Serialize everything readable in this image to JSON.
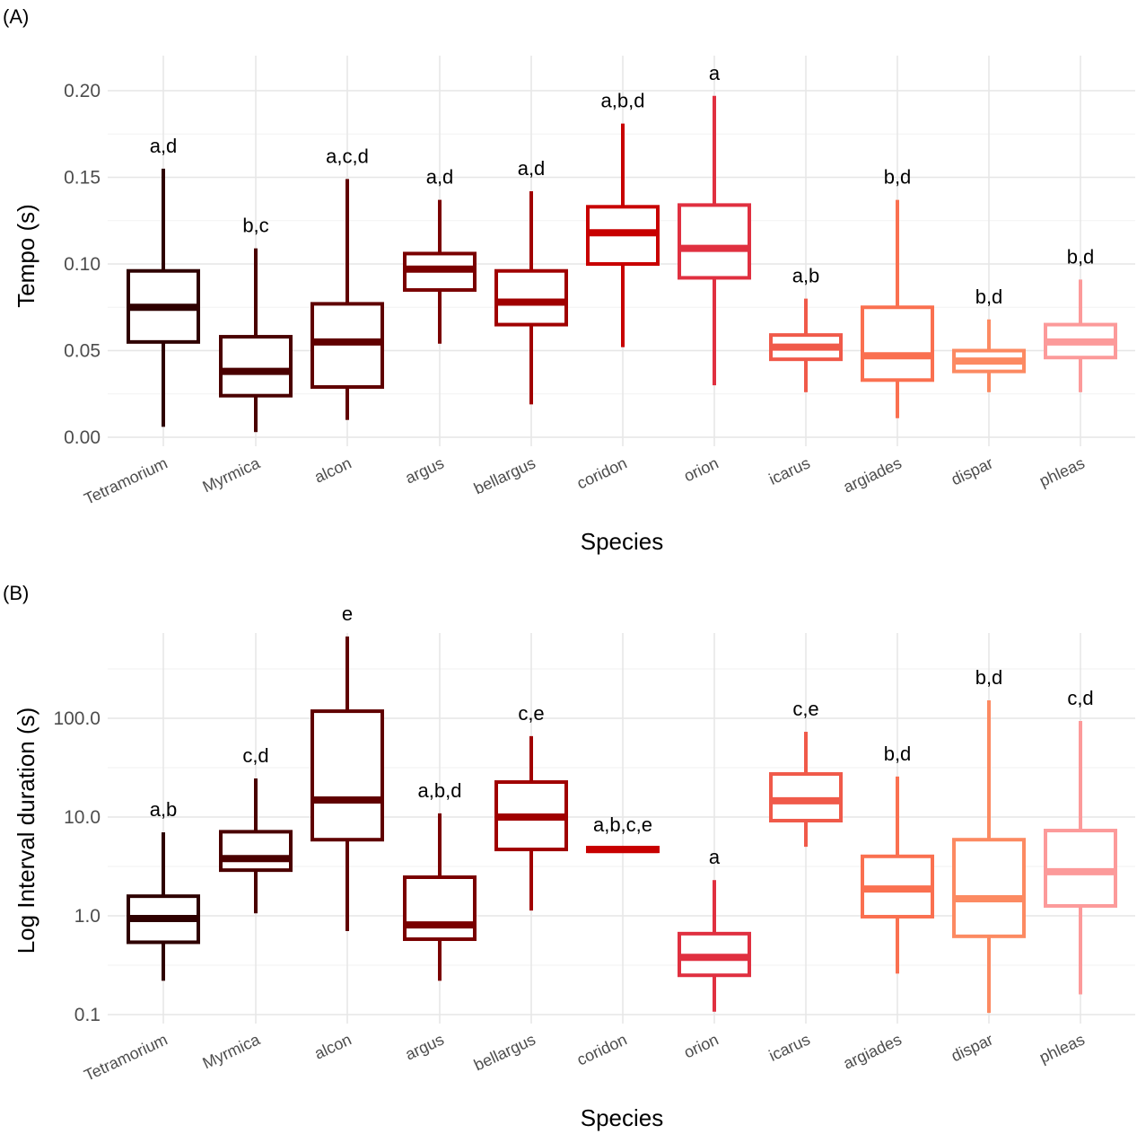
{
  "chart_data": [
    {
      "type": "boxplot",
      "panel_label": "(A)",
      "xlabel": "Species",
      "ylabel": "Tempo (s)",
      "ylim": [
        0,
        0.2
      ],
      "yticks": [
        0.0,
        0.05,
        0.1,
        0.15,
        0.2
      ],
      "ytick_labels": [
        "0.00",
        "0.05",
        "0.10",
        "0.15",
        "0.20"
      ],
      "scale": "linear",
      "grid": true,
      "categories": [
        "Tetramorium",
        "Myrmica",
        "alcon",
        "argus",
        "bellargus",
        "coridon",
        "orion",
        "icarus",
        "argiades",
        "dispar",
        "phleas"
      ],
      "boxes": [
        {
          "min": 0.006,
          "q1": 0.055,
          "median": 0.075,
          "q3": 0.096,
          "max": 0.155,
          "letters": "a,d"
        },
        {
          "min": 0.003,
          "q1": 0.024,
          "median": 0.038,
          "q3": 0.058,
          "max": 0.109,
          "letters": "b,c"
        },
        {
          "min": 0.01,
          "q1": 0.029,
          "median": 0.055,
          "q3": 0.077,
          "max": 0.149,
          "letters": "a,c,d"
        },
        {
          "min": 0.054,
          "q1": 0.085,
          "median": 0.097,
          "q3": 0.106,
          "max": 0.137,
          "letters": "a,d"
        },
        {
          "min": 0.019,
          "q1": 0.065,
          "median": 0.078,
          "q3": 0.096,
          "max": 0.142,
          "letters": "a,d"
        },
        {
          "min": 0.052,
          "q1": 0.1,
          "median": 0.118,
          "q3": 0.133,
          "max": 0.181,
          "letters": "a,b,d"
        },
        {
          "min": 0.03,
          "q1": 0.092,
          "median": 0.109,
          "q3": 0.134,
          "max": 0.197,
          "letters": "a"
        },
        {
          "min": 0.026,
          "q1": 0.045,
          "median": 0.052,
          "q3": 0.059,
          "max": 0.08,
          "letters": "a,b"
        },
        {
          "min": 0.011,
          "q1": 0.033,
          "median": 0.047,
          "q3": 0.075,
          "max": 0.137,
          "letters": "b,d"
        },
        {
          "min": 0.026,
          "q1": 0.038,
          "median": 0.044,
          "q3": 0.05,
          "max": 0.068,
          "letters": "b,d"
        },
        {
          "min": 0.026,
          "q1": 0.046,
          "median": 0.055,
          "q3": 0.065,
          "max": 0.091,
          "letters": "b,d"
        }
      ]
    },
    {
      "type": "boxplot",
      "panel_label": "(B)",
      "xlabel": "Species",
      "ylabel": "Log Interval duration (s)",
      "ylim": [
        0.1,
        1000
      ],
      "yticks": [
        0.1,
        1,
        10,
        100
      ],
      "ytick_labels": [
        "0.1",
        "1.0",
        "10.0",
        "100.0"
      ],
      "scale": "log10",
      "grid": true,
      "categories": [
        "Tetramorium",
        "Myrmica",
        "alcon",
        "argus",
        "bellargus",
        "coridon",
        "orion",
        "icarus",
        "argiades",
        "dispar",
        "phleas"
      ],
      "boxes": [
        {
          "min": 0.22,
          "q1": 0.54,
          "median": 0.94,
          "q3": 1.58,
          "max": 7.0,
          "letters": "a,b"
        },
        {
          "min": 1.06,
          "q1": 2.9,
          "median": 3.8,
          "q3": 7.1,
          "max": 24.6,
          "letters": "c,d"
        },
        {
          "min": 0.7,
          "q1": 5.9,
          "median": 14.9,
          "q3": 118,
          "max": 673,
          "letters": "e"
        },
        {
          "min": 0.22,
          "q1": 0.58,
          "median": 0.81,
          "q3": 2.46,
          "max": 10.9,
          "letters": "a,b,d"
        },
        {
          "min": 1.13,
          "q1": 4.7,
          "median": 10,
          "q3": 22.6,
          "max": 66,
          "letters": "c,e"
        },
        {
          "min": 4.5,
          "q1": 4.5,
          "median": 4.7,
          "q3": 4.9,
          "max": 4.9,
          "letters": "a,b,c,e"
        },
        {
          "min": 0.107,
          "q1": 0.25,
          "median": 0.38,
          "q3": 0.66,
          "max": 2.3,
          "letters": "a"
        },
        {
          "min": 5.0,
          "q1": 9.2,
          "median": 14.6,
          "q3": 27.3,
          "max": 73,
          "letters": "c,e"
        },
        {
          "min": 0.26,
          "q1": 0.98,
          "median": 1.87,
          "q3": 4.0,
          "max": 25.7,
          "letters": "b,d"
        },
        {
          "min": 0.104,
          "q1": 0.62,
          "median": 1.49,
          "q3": 5.9,
          "max": 152,
          "letters": "b,d"
        },
        {
          "min": 0.16,
          "q1": 1.26,
          "median": 2.8,
          "q3": 7.3,
          "max": 94,
          "letters": "c,d"
        }
      ]
    }
  ],
  "colors": [
    "#2e0000",
    "#4a0000",
    "#600000",
    "#7a0000",
    "#a00000",
    "#c80000",
    "#e03040",
    "#f05a4a",
    "#fa7050",
    "#fc8a62",
    "#fc9a9a"
  ]
}
